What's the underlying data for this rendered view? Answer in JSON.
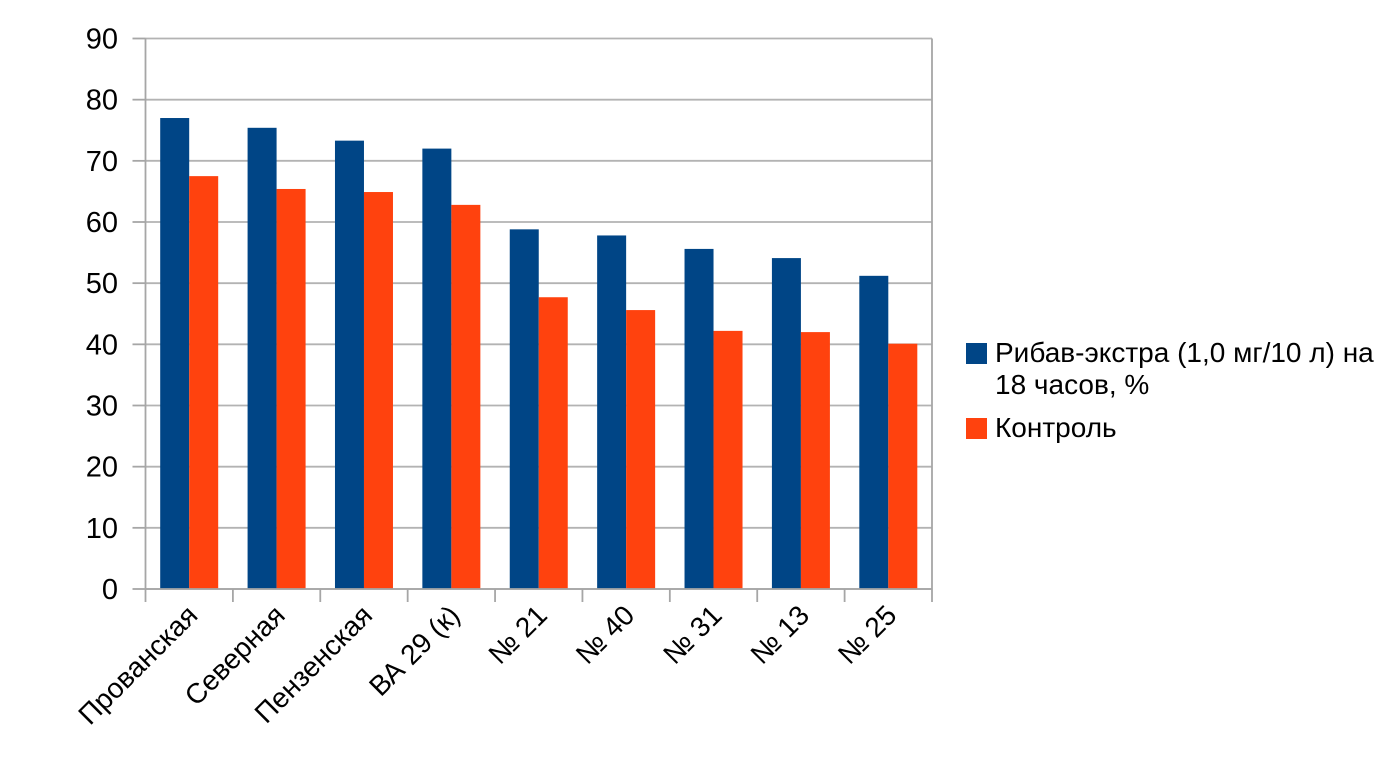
{
  "chart_data": {
    "type": "bar",
    "title": "",
    "xlabel": "",
    "ylabel": "",
    "categories": [
      "Прованская",
      "Северная",
      "Пензенская",
      "ВА 29 (к)",
      "№ 21",
      "№ 40",
      "№ 31",
      "№ 13",
      "№ 25"
    ],
    "series": [
      {
        "name": "Рибав-экстра (1,0 мг/10 л) на 18 часов, %",
        "color": "#004586",
        "values": [
          77.0,
          75.4,
          73.3,
          72.0,
          58.8,
          57.8,
          55.6,
          54.1,
          51.2
        ]
      },
      {
        "name": "Контроль",
        "color": "#ff420e",
        "values": [
          67.5,
          65.4,
          64.9,
          62.8,
          47.7,
          45.6,
          42.2,
          42.0,
          40.1
        ]
      }
    ],
    "ylim": [
      0,
      90
    ],
    "ytick_step": 10,
    "y_tick_labels": [
      "0",
      "10",
      "20",
      "30",
      "40",
      "50",
      "60",
      "70",
      "80",
      "90"
    ],
    "grid": true,
    "legend_position": "right",
    "x_label_rotation_deg": 45
  },
  "colors": {
    "background": "#ffffff",
    "gridline": "#b3b3b3",
    "axis": "#a6a6a6",
    "text": "#000000"
  }
}
